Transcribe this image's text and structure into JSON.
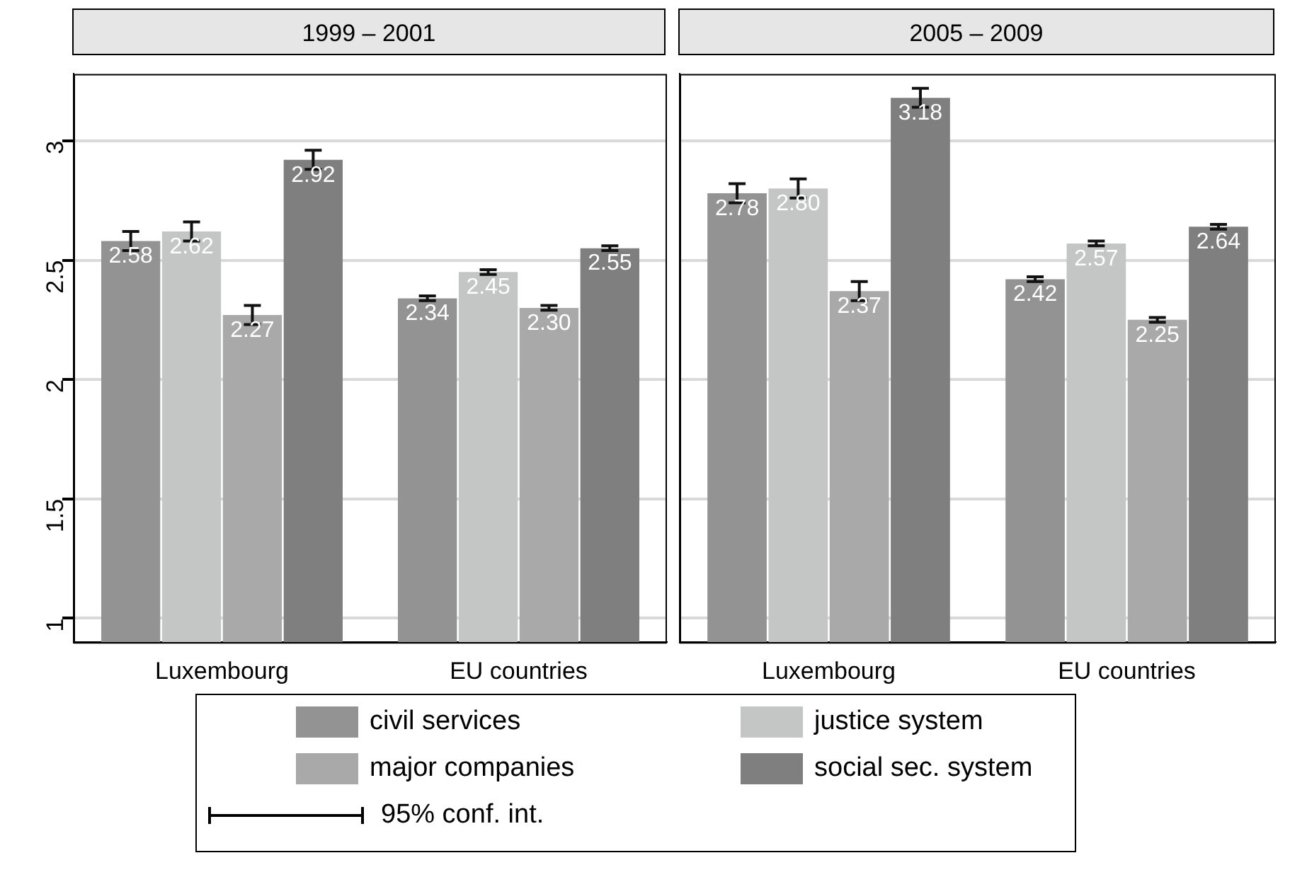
{
  "chart_data": [
    {
      "type": "bar",
      "title": "1999 – 2001",
      "categories": [
        "Luxembourg",
        "EU countries"
      ],
      "series": [
        {
          "name": "civil services",
          "color": "#939393",
          "values": [
            2.58,
            2.34
          ],
          "errors": [
            0.04,
            0.01
          ],
          "value_labels": [
            "2.58",
            "2.34"
          ]
        },
        {
          "name": "justice system",
          "color": "#c4c6c5",
          "values": [
            2.62,
            2.45
          ],
          "errors": [
            0.04,
            0.01
          ],
          "value_labels": [
            "2.62",
            "2.45"
          ]
        },
        {
          "name": "major companies",
          "color": "#a9a9a9",
          "values": [
            2.27,
            2.3
          ],
          "errors": [
            0.04,
            0.01
          ],
          "value_labels": [
            "2.27",
            "2.30"
          ]
        },
        {
          "name": "social sec. system",
          "color": "#7f7f7f",
          "values": [
            2.92,
            2.55
          ],
          "errors": [
            0.04,
            0.01
          ],
          "value_labels": [
            "2.92",
            "2.55"
          ]
        }
      ],
      "ylim": [
        0.9,
        3.28
      ],
      "yticks": [
        1,
        1.5,
        2,
        2.5,
        3
      ],
      "grid": "y",
      "data_labels": true,
      "legend": "bottom",
      "annotations": [
        "95% conf. int."
      ]
    },
    {
      "type": "bar",
      "title": "2005 – 2009",
      "categories": [
        "Luxembourg",
        "EU countries"
      ],
      "series": [
        {
          "color": "#939393",
          "values": [
            2.78,
            2.42
          ],
          "errors": [
            0.04,
            0.01
          ],
          "value_labels": [
            "2.78",
            "2.42"
          ]
        },
        {
          "color": "#c4c6c5",
          "values": [
            2.8,
            2.57
          ],
          "errors": [
            0.04,
            0.01
          ],
          "value_labels": [
            "2.80",
            "2.57"
          ]
        },
        {
          "color": "#a9a9a9",
          "values": [
            2.37,
            2.25
          ],
          "errors": [
            0.04,
            0.01
          ],
          "value_labels": [
            "2.37",
            "2.25"
          ]
        },
        {
          "color": "#7f7f7f",
          "values": [
            3.18,
            2.64
          ],
          "errors": [
            0.04,
            0.01
          ],
          "value_labels": [
            "3.18",
            "2.64"
          ]
        }
      ],
      "ylim": [
        0.9,
        3.28
      ],
      "yticks": [
        1,
        1.5,
        2,
        2.5,
        3
      ],
      "grid": "y",
      "data_labels": true,
      "tick_labels": "x"
    }
  ]
}
